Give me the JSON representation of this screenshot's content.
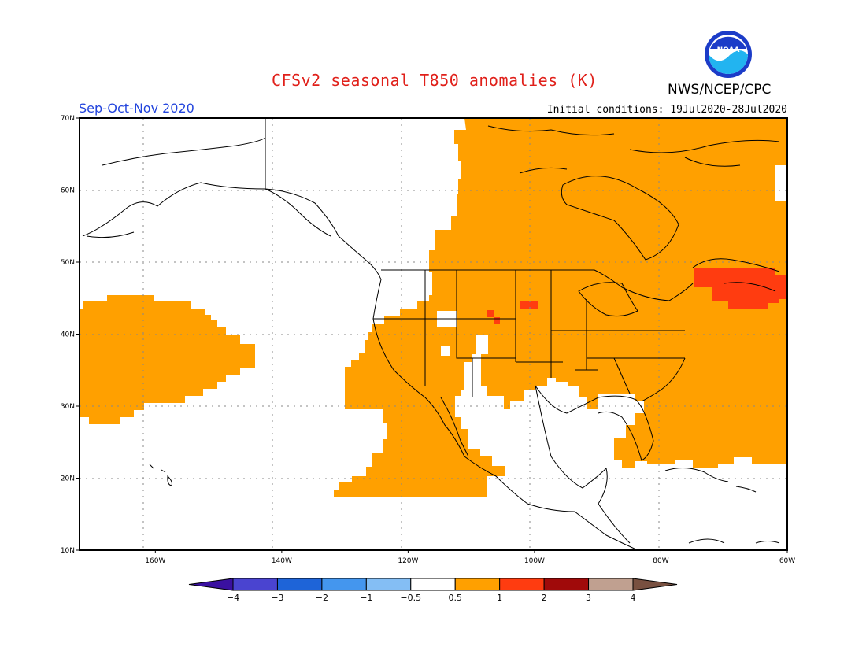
{
  "title": "CFSv2 seasonal T850 anomalies (K)",
  "org": "NWS/NCEP/CPC",
  "logo_text": "NOAA",
  "season": "Sep-Oct-Nov 2020",
  "initial_conditions": "Initial conditions: 19Jul2020-28Jul2020",
  "map": {
    "lon_range": [
      -172,
      -60
    ],
    "lat_range": [
      10,
      70
    ],
    "lon_ticks": [
      {
        "value": -160,
        "label": "160W"
      },
      {
        "value": -140,
        "label": "140W"
      },
      {
        "value": -120,
        "label": "120W"
      },
      {
        "value": -100,
        "label": "100W"
      },
      {
        "value": -80,
        "label": "80W"
      },
      {
        "value": -60,
        "label": "60W"
      }
    ],
    "lat_ticks": [
      {
        "value": 10,
        "label": "10N"
      },
      {
        "value": 20,
        "label": "20N"
      },
      {
        "value": 30,
        "label": "30N"
      },
      {
        "value": 40,
        "label": "40N"
      },
      {
        "value": 50,
        "label": "50N"
      },
      {
        "value": 60,
        "label": "60N"
      },
      {
        "value": 70,
        "label": "70N"
      }
    ]
  },
  "colorbar": {
    "colors": [
      "#3a10a0",
      "#4a44d0",
      "#1e64d8",
      "#4496ee",
      "#84bef4",
      "#ffffff",
      "#ffa000",
      "#ff3c10",
      "#a00a0a",
      "#c0a090",
      "#785040"
    ],
    "labels": [
      "−4",
      "−3",
      "−2",
      "−1",
      "−0.5",
      "0.5",
      "1",
      "2",
      "3",
      "4"
    ]
  },
  "anomaly_colors": {
    "warm1": "#ffa000",
    "warm2": "#ff3c10"
  }
}
